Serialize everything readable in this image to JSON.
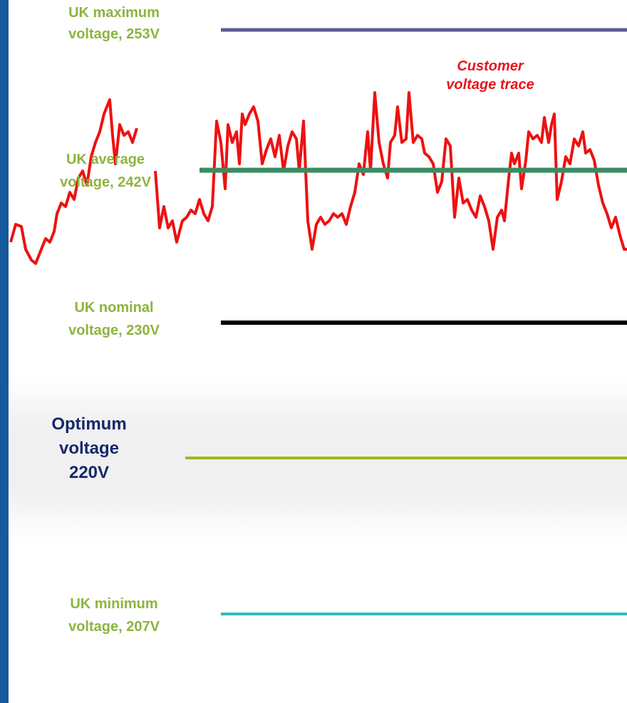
{
  "levels": [
    {
      "lines": [
        "UK maximum",
        "voltage, 253V"
      ]
    },
    {
      "lines": [
        "UK average",
        "voltage, 242V"
      ]
    },
    {
      "lines": [
        "UK nominal",
        "voltage, 230V"
      ]
    },
    {
      "lines": [
        "Optimum",
        "voltage",
        "220V"
      ]
    },
    {
      "lines": [
        "UK minimum",
        "voltage, 207V"
      ]
    }
  ],
  "trace_label": [
    "Customer",
    "voltage trace"
  ]
}
